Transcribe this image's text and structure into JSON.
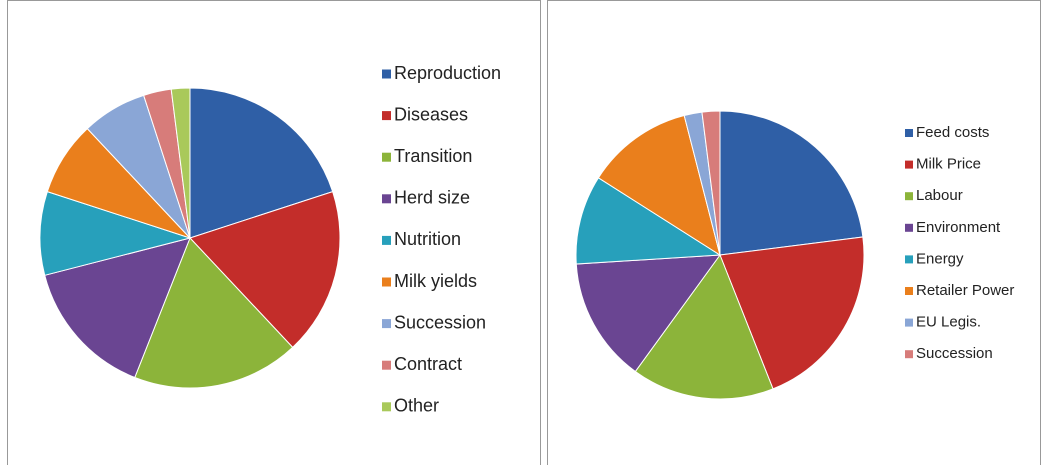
{
  "chart_data": [
    {
      "type": "pie",
      "categories": [
        "Reproduction",
        "Diseases",
        "Transition",
        "Herd size",
        "Nutrition",
        "Milk yields",
        "Succession",
        "Contract",
        "Other"
      ],
      "values": [
        20,
        18,
        18,
        15,
        9,
        8,
        7,
        3,
        2
      ],
      "colors": [
        "#2f5fa6",
        "#c32d2a",
        "#8cb43a",
        "#6a4592",
        "#27a0bb",
        "#ea7f1c",
        "#8aa6d6",
        "#d77c7a",
        "#a9c95a"
      ]
    },
    {
      "type": "pie",
      "categories": [
        "Feed costs",
        "Milk Price",
        "Labour",
        "Environment",
        "Energy",
        "Retailer Power",
        "EU Legis.",
        "Succession"
      ],
      "values": [
        23,
        21,
        16,
        14,
        10,
        12,
        2,
        2
      ],
      "colors": [
        "#2f5fa6",
        "#c32d2a",
        "#8cb43a",
        "#6a4592",
        "#27a0bb",
        "#ea7f1c",
        "#8aa6d6",
        "#d77c7a"
      ]
    }
  ]
}
